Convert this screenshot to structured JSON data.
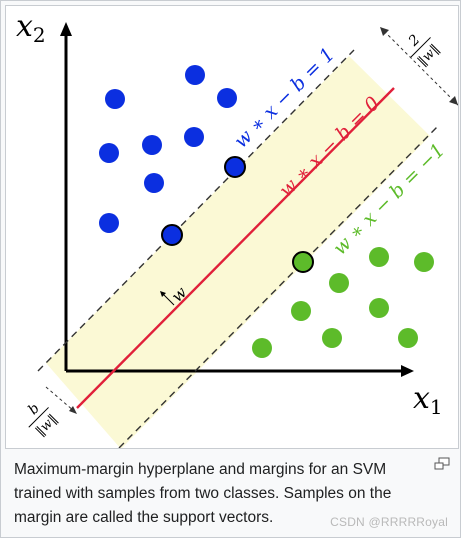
{
  "figure": {
    "axis_x_label": "x",
    "axis_x_sub": "1",
    "axis_y_label": "x",
    "axis_y_sub": "2",
    "line_upper": "w ∗ x − b = 1",
    "line_middle": "w ∗ x − b = 0",
    "line_lower": "w ∗ x − b = −1",
    "normal_label": "w",
    "margin_numerator": "2",
    "margin_denominator": "‖w‖",
    "offset_numerator": "b",
    "offset_denominator": "‖w‖",
    "colors": {
      "blue_class": "#0b2fe0",
      "green_class": "#5dbb2a",
      "hyperplane": "#e0203a",
      "margin_band": "#fbf9d5"
    }
  },
  "caption": {
    "text": "Maximum-margin hyperplane and margins for an SVM trained with samples from two classes. Samples on the margin are called the support vectors."
  },
  "icons": {
    "enlarge": "enlarge-icon"
  },
  "watermark": {
    "text": "CSDN @RRRRRoyal"
  }
}
